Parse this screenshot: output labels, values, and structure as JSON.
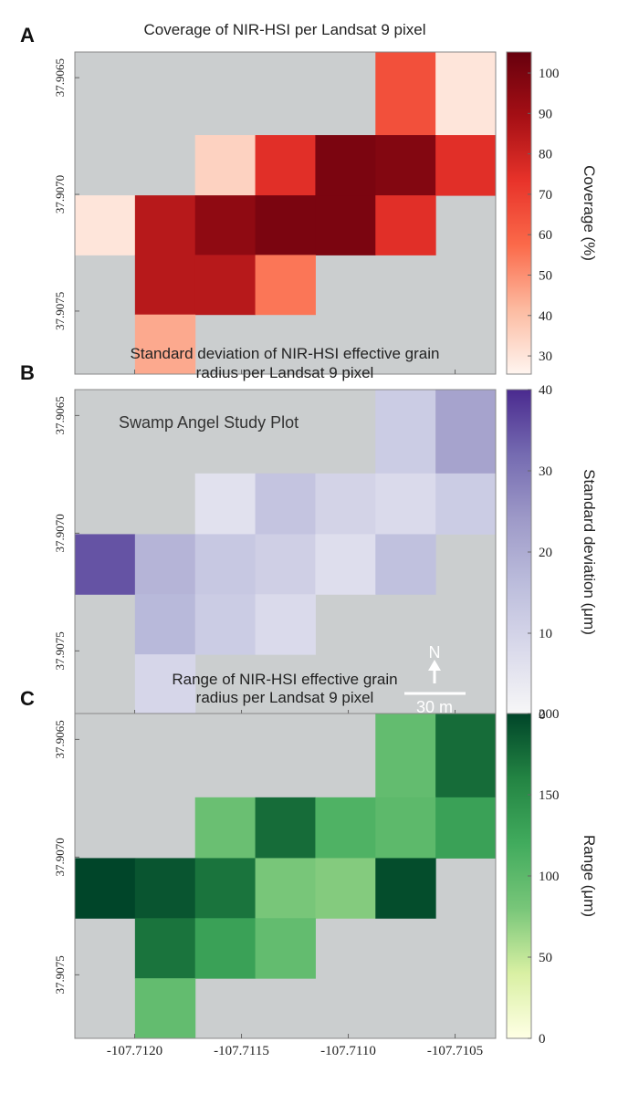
{
  "chart_data": [
    {
      "type": "heatmap",
      "panel_label": "A",
      "title": [
        "Coverage of NIR-HSI per Landsat 9 pixel"
      ],
      "z": [
        [
          null,
          null,
          null,
          null,
          null,
          65,
          30
        ],
        [
          null,
          null,
          35,
          75,
          100,
          98,
          75
        ],
        [
          30,
          85,
          95,
          100,
          100,
          75,
          null
        ],
        [
          null,
          85,
          85,
          55,
          null,
          null,
          null
        ],
        [
          null,
          45,
          null,
          null,
          null,
          null,
          null
        ]
      ],
      "colors": [
        "#fff5f0",
        "#fcbba1",
        "#fb6a4a",
        "#e8332a",
        "#a50f15",
        "#67000d"
      ],
      "clim": [
        25.5,
        105.2
      ],
      "cticks": [
        30,
        40,
        50,
        60,
        70,
        80,
        90,
        100
      ],
      "colorbar_label": "Coverage (%)",
      "xlim": [
        -107.71228,
        -107.71031
      ],
      "xticks": [
        -107.712,
        -107.7115,
        -107.711,
        -107.7105
      ],
      "ylim": [
        37.90639,
        37.90777
      ],
      "yticks": [
        37.9065,
        {
          "value": 37.907,
          "label": "37.9070"
        },
        37.9075
      ]
    },
    {
      "type": "heatmap",
      "panel_label": "B",
      "title": [
        "Standard deviation of NIR-HSI effective grain",
        "radius per Landsat 9 pixel"
      ],
      "z": [
        [
          null,
          null,
          null,
          null,
          null,
          12,
          22
        ],
        [
          null,
          null,
          6,
          14,
          10,
          8,
          12
        ],
        [
          35,
          18,
          13,
          11,
          7,
          15,
          null
        ],
        [
          null,
          17,
          12,
          8,
          null,
          null,
          null
        ],
        [
          null,
          9,
          null,
          null,
          null,
          null,
          null
        ]
      ],
      "colors": [
        "#f7f7f7",
        "#dadaeb",
        "#bcbddc",
        "#9e9ac8",
        "#756bb1",
        "#4a2a8f"
      ],
      "clim": [
        0,
        40
      ],
      "cticks": [
        0,
        10,
        20,
        30,
        40
      ],
      "colorbar_label": "Standard deviation (μm)",
      "annotation": "Swamp Angel Study Plot",
      "north_label": "N",
      "scale_label": "30 m",
      "xlim": [
        -107.71228,
        -107.71031
      ],
      "xticks": [
        -107.712,
        -107.7115,
        -107.711,
        -107.7105
      ],
      "ylim": [
        37.90639,
        37.90777
      ],
      "yticks": [
        37.9065,
        {
          "value": 37.907,
          "label": "37.9070"
        },
        37.9075
      ]
    },
    {
      "type": "heatmap",
      "panel_label": "C",
      "title": [
        "Range of NIR-HSI effective grain",
        "radius per Landsat 9 pixel"
      ],
      "z": [
        [
          null,
          null,
          null,
          null,
          null,
          95,
          175
        ],
        [
          null,
          null,
          90,
          175,
          110,
          100,
          130
        ],
        [
          200,
          190,
          170,
          80,
          75,
          195,
          null
        ],
        [
          null,
          170,
          130,
          95,
          null,
          null,
          null
        ],
        [
          null,
          95,
          null,
          null,
          null,
          null,
          null
        ]
      ],
      "colors": [
        "#ffffe5",
        "#d9f0a3",
        "#78c679",
        "#41ab5d",
        "#238443",
        "#004529"
      ],
      "clim": [
        0,
        200
      ],
      "cticks": [
        0,
        50,
        100,
        150,
        200
      ],
      "colorbar_label": "Range (μm)",
      "xlim": [
        -107.71228,
        -107.71031
      ],
      "xticks": [
        {
          "value": -107.712,
          "label": "-107.7120"
        },
        {
          "value": -107.7115,
          "label": "-107.7115"
        },
        {
          "value": -107.711,
          "label": "-107.7110"
        },
        {
          "value": -107.7105,
          "label": "-107.7105"
        }
      ],
      "ylim": [
        37.90639,
        37.90777
      ],
      "yticks": [
        37.9065,
        {
          "value": 37.907,
          "label": "37.9070"
        },
        37.9075
      ]
    }
  ]
}
